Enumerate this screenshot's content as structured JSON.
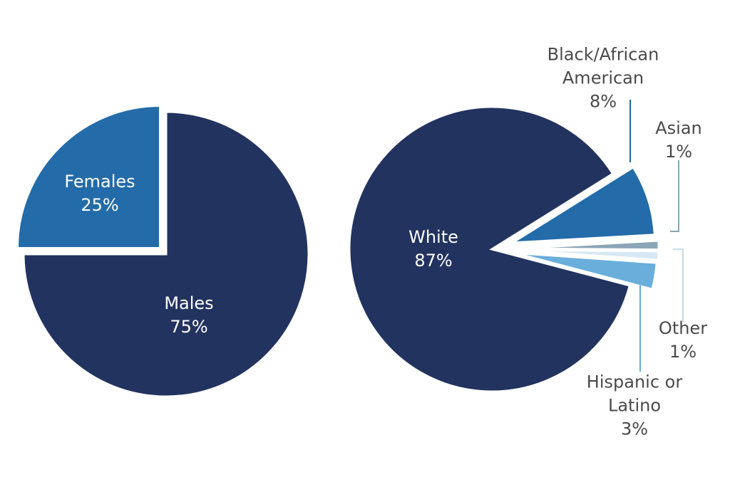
{
  "chart_data": [
    {
      "type": "pie",
      "categories": [
        "Females",
        "Males"
      ],
      "values": [
        25,
        75
      ],
      "value_labels": [
        "25%",
        "75%"
      ],
      "colors": [
        "#236ba9",
        "#22335f"
      ]
    },
    {
      "type": "pie",
      "categories": [
        "Black/African American",
        "Asian",
        "Other",
        "Hispanic or Latino",
        "White"
      ],
      "values": [
        8,
        1,
        1,
        3,
        87
      ],
      "value_labels": [
        "8%",
        "1%",
        "1%",
        "3%",
        "87%"
      ],
      "colors": [
        "#236ba9",
        "#8aa5b5",
        "#d6e8f5",
        "#6aaedb",
        "#22335f"
      ]
    }
  ]
}
